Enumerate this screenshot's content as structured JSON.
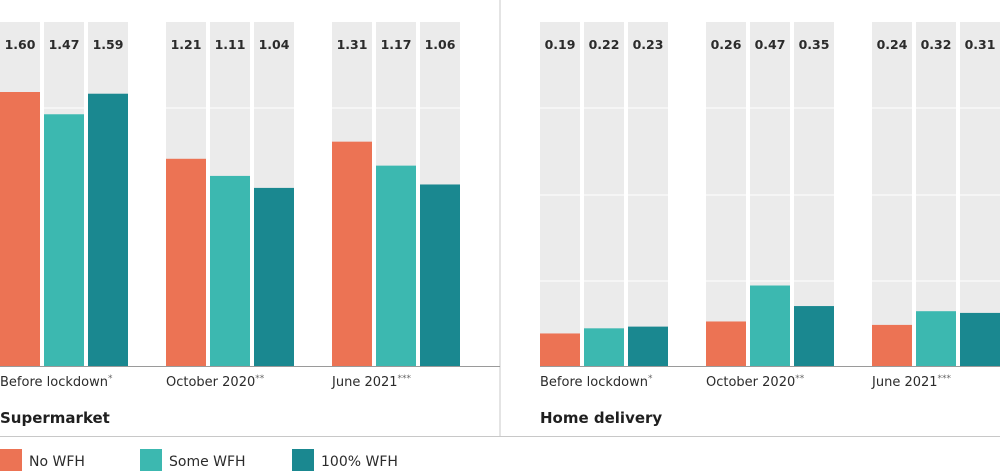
{
  "chart_data": [
    {
      "type": "bar",
      "title": "Supermarket",
      "categories": [
        "Before lockdown",
        "October 2020",
        "June 2021"
      ],
      "category_marks": [
        "*",
        "**",
        "***"
      ],
      "ylim": [
        0,
        1.6
      ],
      "series": [
        {
          "name": "No WFH",
          "values": [
            1.6,
            1.21,
            1.31
          ]
        },
        {
          "name": "Some WFH",
          "values": [
            1.47,
            1.11,
            1.17
          ]
        },
        {
          "name": "100% WFH",
          "values": [
            1.59,
            1.04,
            1.06
          ]
        }
      ],
      "labels": [
        [
          "1.60",
          "1.47",
          "1.59"
        ],
        [
          "1.21",
          "1.11",
          "1.04"
        ],
        [
          "1.31",
          "1.17",
          "1.06"
        ]
      ],
      "grid": true
    },
    {
      "type": "bar",
      "title": "Home delivery",
      "categories": [
        "Before lockdown",
        "October 2020",
        "June 2021"
      ],
      "category_marks": [
        "*",
        "**",
        "***"
      ],
      "ylim": [
        0,
        1.6
      ],
      "series": [
        {
          "name": "No WFH",
          "values": [
            0.19,
            0.26,
            0.24
          ]
        },
        {
          "name": "Some WFH",
          "values": [
            0.22,
            0.47,
            0.32
          ]
        },
        {
          "name": "100% WFH",
          "values": [
            0.23,
            0.35,
            0.31
          ]
        }
      ],
      "labels": [
        [
          "0.19",
          "0.22",
          "0.23"
        ],
        [
          "0.26",
          "0.47",
          "0.35"
        ],
        [
          "0.24",
          "0.32",
          "0.31"
        ]
      ],
      "grid": true
    }
  ],
  "legend": {
    "placement": "bottom-left",
    "items": [
      {
        "label": "No WFH",
        "color": "#ec7354"
      },
      {
        "label": "Some WFH",
        "color": "#3cb8b0"
      },
      {
        "label": "100% WFH",
        "color": "#1a8890"
      }
    ]
  },
  "colors": {
    "track": "#ebebeb",
    "grid": "#ffffff",
    "divider": "#c8c8c8",
    "baseline": "#9a9a9a"
  }
}
